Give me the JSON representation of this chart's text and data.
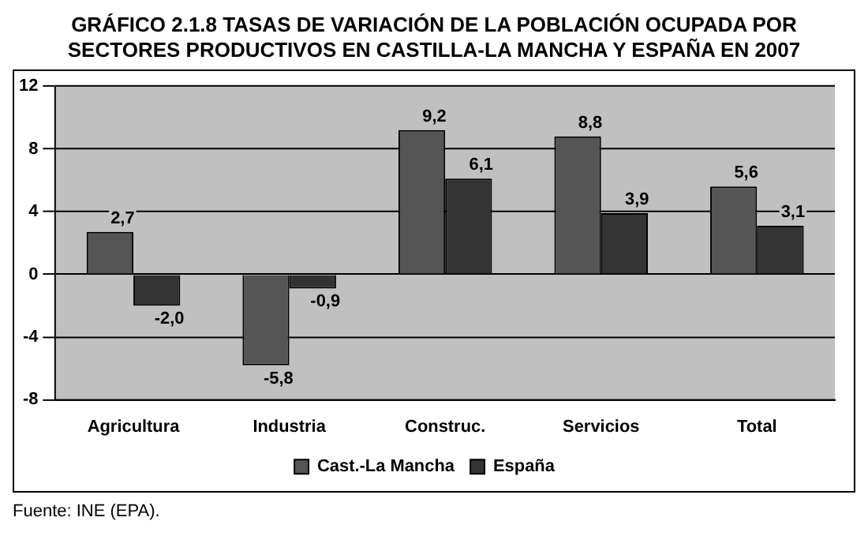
{
  "chart_data": {
    "type": "bar",
    "title": "GRÁFICO 2.1.8 TASAS DE VARIACIÓN DE LA POBLACIÓN OCUPADA POR SECTORES PRODUCTIVOS EN CASTILLA-LA MANCHA Y ESPAÑA EN 2007",
    "categories": [
      "Agricultura",
      "Industria",
      "Construc.",
      "Servicios",
      "Total"
    ],
    "series": [
      {
        "name": "Cast.-La Mancha",
        "color": "#555555",
        "values": [
          2.7,
          -5.8,
          9.2,
          8.8,
          5.6
        ],
        "value_labels": [
          "2,7",
          "-5,8",
          "9,2",
          "8,8",
          "5,6"
        ]
      },
      {
        "name": "España",
        "color": "#333333",
        "values": [
          -2.0,
          -0.9,
          6.1,
          3.9,
          3.1
        ],
        "value_labels": [
          "-2,0",
          "-0,9",
          "6,1",
          "3,9",
          "3,1"
        ]
      }
    ],
    "ylim": [
      -8,
      12
    ],
    "yticks": [
      -8,
      -4,
      0,
      4,
      8,
      12
    ],
    "grid": "y",
    "legend": "bottom",
    "annotations": [
      "Fuente: INE (EPA)."
    ]
  }
}
